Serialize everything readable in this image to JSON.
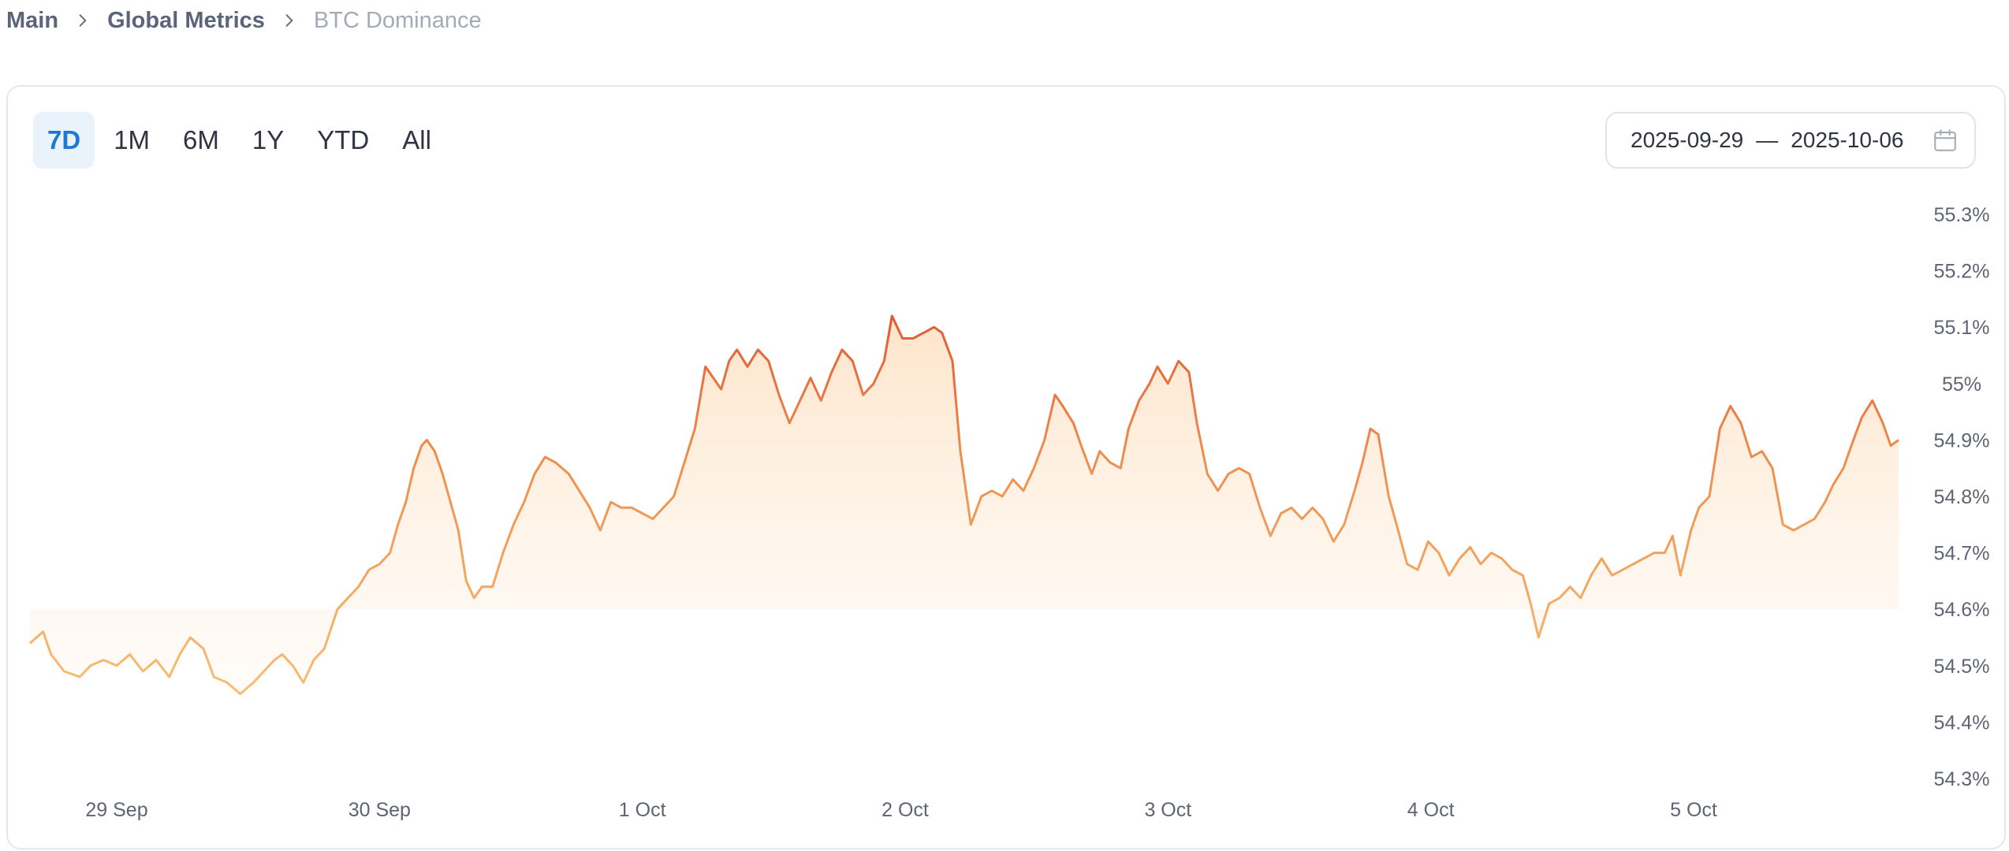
{
  "breadcrumb": {
    "items": [
      "Main",
      "Global Metrics",
      "BTC Dominance"
    ]
  },
  "range_tabs": {
    "items": [
      "7D",
      "1M",
      "6M",
      "1Y",
      "YTD",
      "All"
    ],
    "active": "7D"
  },
  "date_range": {
    "start": "2025-09-29",
    "separator": "—",
    "end": "2025-10-06",
    "icon": "calendar-icon"
  },
  "colors": {
    "active_tab_bg": "#eaf3fc",
    "active_tab_text": "#1a7ad4",
    "line_low": "#f7be73",
    "line_mid": "#ee8d4d",
    "line_high": "#d9452b",
    "area_fill": "#fde8d2"
  },
  "chart_data": {
    "type": "area",
    "title": "",
    "xlabel": "",
    "ylabel": "",
    "x_tick_labels": [
      "29 Sep",
      "30 Sep",
      "1 Oct",
      "2 Oct",
      "3 Oct",
      "4 Oct",
      "5 Oct"
    ],
    "y_tick_labels": [
      "55.3%",
      "55.2%",
      "55.1%",
      "55%",
      "54.9%",
      "54.8%",
      "54.7%",
      "54.6%",
      "54.5%",
      "54.4%",
      "54.3%"
    ],
    "y_ticks": [
      55.3,
      55.2,
      55.1,
      55.0,
      54.9,
      54.8,
      54.7,
      54.6,
      54.5,
      54.4,
      54.3
    ],
    "ylim": [
      54.3,
      55.3
    ],
    "x_range_days": [
      -0.33,
      6.78
    ],
    "grid": false,
    "legend": "none",
    "series": [
      {
        "points": [
          [
            -0.33,
            54.54
          ],
          [
            -0.28,
            54.56
          ],
          [
            -0.25,
            54.52
          ],
          [
            -0.2,
            54.49
          ],
          [
            -0.14,
            54.48
          ],
          [
            -0.1,
            54.5
          ],
          [
            -0.05,
            54.51
          ],
          [
            0,
            54.5
          ],
          [
            0.05,
            54.52
          ],
          [
            0.1,
            54.49
          ],
          [
            0.15,
            54.51
          ],
          [
            0.2,
            54.48
          ],
          [
            0.24,
            54.52
          ],
          [
            0.28,
            54.55
          ],
          [
            0.33,
            54.53
          ],
          [
            0.37,
            54.48
          ],
          [
            0.42,
            54.47
          ],
          [
            0.47,
            54.45
          ],
          [
            0.52,
            54.47
          ],
          [
            0.56,
            54.49
          ],
          [
            0.6,
            54.51
          ],
          [
            0.63,
            54.52
          ],
          [
            0.67,
            54.5
          ],
          [
            0.71,
            54.47
          ],
          [
            0.75,
            54.51
          ],
          [
            0.79,
            54.53
          ],
          [
            0.84,
            54.6
          ],
          [
            0.88,
            54.62
          ],
          [
            0.92,
            54.64
          ],
          [
            0.96,
            54.67
          ],
          [
            1.0,
            54.68
          ],
          [
            1.04,
            54.7
          ],
          [
            1.07,
            54.75
          ],
          [
            1.1,
            54.79
          ],
          [
            1.13,
            54.85
          ],
          [
            1.16,
            54.89
          ],
          [
            1.18,
            54.9
          ],
          [
            1.21,
            54.88
          ],
          [
            1.24,
            54.84
          ],
          [
            1.27,
            54.79
          ],
          [
            1.3,
            54.74
          ],
          [
            1.33,
            54.65
          ],
          [
            1.36,
            54.62
          ],
          [
            1.39,
            54.64
          ],
          [
            1.43,
            54.64
          ],
          [
            1.47,
            54.7
          ],
          [
            1.51,
            54.75
          ],
          [
            1.55,
            54.79
          ],
          [
            1.59,
            54.84
          ],
          [
            1.63,
            54.87
          ],
          [
            1.67,
            54.86
          ],
          [
            1.72,
            54.84
          ],
          [
            1.76,
            54.81
          ],
          [
            1.8,
            54.78
          ],
          [
            1.84,
            54.74
          ],
          [
            1.88,
            54.79
          ],
          [
            1.92,
            54.78
          ],
          [
            1.96,
            54.78
          ],
          [
            2.0,
            54.77
          ],
          [
            2.04,
            54.76
          ],
          [
            2.08,
            54.78
          ],
          [
            2.12,
            54.8
          ],
          [
            2.16,
            54.86
          ],
          [
            2.2,
            54.92
          ],
          [
            2.24,
            55.03
          ],
          [
            2.27,
            55.01
          ],
          [
            2.3,
            54.99
          ],
          [
            2.33,
            55.04
          ],
          [
            2.36,
            55.06
          ],
          [
            2.4,
            55.03
          ],
          [
            2.44,
            55.06
          ],
          [
            2.48,
            55.04
          ],
          [
            2.52,
            54.98
          ],
          [
            2.56,
            54.93
          ],
          [
            2.6,
            54.97
          ],
          [
            2.64,
            55.01
          ],
          [
            2.68,
            54.97
          ],
          [
            2.72,
            55.02
          ],
          [
            2.76,
            55.06
          ],
          [
            2.8,
            55.04
          ],
          [
            2.84,
            54.98
          ],
          [
            2.88,
            55.0
          ],
          [
            2.92,
            55.04
          ],
          [
            2.95,
            55.12
          ],
          [
            2.99,
            55.08
          ],
          [
            3.03,
            55.08
          ],
          [
            3.07,
            55.09
          ],
          [
            3.11,
            55.1
          ],
          [
            3.14,
            55.09
          ],
          [
            3.18,
            55.04
          ],
          [
            3.21,
            54.88
          ],
          [
            3.25,
            54.75
          ],
          [
            3.29,
            54.8
          ],
          [
            3.33,
            54.81
          ],
          [
            3.37,
            54.8
          ],
          [
            3.41,
            54.83
          ],
          [
            3.45,
            54.81
          ],
          [
            3.49,
            54.85
          ],
          [
            3.53,
            54.9
          ],
          [
            3.57,
            54.98
          ],
          [
            3.6,
            54.96
          ],
          [
            3.64,
            54.93
          ],
          [
            3.67,
            54.89
          ],
          [
            3.71,
            54.84
          ],
          [
            3.74,
            54.88
          ],
          [
            3.78,
            54.86
          ],
          [
            3.82,
            54.85
          ],
          [
            3.85,
            54.92
          ],
          [
            3.89,
            54.97
          ],
          [
            3.93,
            55.0
          ],
          [
            3.96,
            55.03
          ],
          [
            4.0,
            55.0
          ],
          [
            4.04,
            55.04
          ],
          [
            4.08,
            55.02
          ],
          [
            4.11,
            54.93
          ],
          [
            4.15,
            54.84
          ],
          [
            4.19,
            54.81
          ],
          [
            4.23,
            54.84
          ],
          [
            4.27,
            54.85
          ],
          [
            4.31,
            54.84
          ],
          [
            4.35,
            54.78
          ],
          [
            4.39,
            54.73
          ],
          [
            4.43,
            54.77
          ],
          [
            4.47,
            54.78
          ],
          [
            4.51,
            54.76
          ],
          [
            4.55,
            54.78
          ],
          [
            4.59,
            54.76
          ],
          [
            4.63,
            54.72
          ],
          [
            4.67,
            54.75
          ],
          [
            4.71,
            54.81
          ],
          [
            4.74,
            54.86
          ],
          [
            4.77,
            54.92
          ],
          [
            4.8,
            54.91
          ],
          [
            4.84,
            54.8
          ],
          [
            4.87,
            54.75
          ],
          [
            4.91,
            54.68
          ],
          [
            4.95,
            54.67
          ],
          [
            4.99,
            54.72
          ],
          [
            5.03,
            54.7
          ],
          [
            5.07,
            54.66
          ],
          [
            5.11,
            54.69
          ],
          [
            5.15,
            54.71
          ],
          [
            5.19,
            54.68
          ],
          [
            5.23,
            54.7
          ],
          [
            5.27,
            54.69
          ],
          [
            5.31,
            54.67
          ],
          [
            5.35,
            54.66
          ],
          [
            5.38,
            54.61
          ],
          [
            5.41,
            54.55
          ],
          [
            5.45,
            54.61
          ],
          [
            5.49,
            54.62
          ],
          [
            5.53,
            54.64
          ],
          [
            5.57,
            54.62
          ],
          [
            5.61,
            54.66
          ],
          [
            5.65,
            54.69
          ],
          [
            5.69,
            54.66
          ],
          [
            5.73,
            54.67
          ],
          [
            5.77,
            54.68
          ],
          [
            5.81,
            54.69
          ],
          [
            5.85,
            54.7
          ],
          [
            5.89,
            54.7
          ],
          [
            5.92,
            54.73
          ],
          [
            5.95,
            54.66
          ],
          [
            5.99,
            54.74
          ],
          [
            6.02,
            54.78
          ],
          [
            6.06,
            54.8
          ],
          [
            6.1,
            54.92
          ],
          [
            6.14,
            54.96
          ],
          [
            6.18,
            54.93
          ],
          [
            6.22,
            54.87
          ],
          [
            6.26,
            54.88
          ],
          [
            6.3,
            54.85
          ],
          [
            6.34,
            54.75
          ],
          [
            6.38,
            54.74
          ],
          [
            6.42,
            54.75
          ],
          [
            6.46,
            54.76
          ],
          [
            6.5,
            54.79
          ],
          [
            6.53,
            54.82
          ],
          [
            6.57,
            54.85
          ],
          [
            6.6,
            54.89
          ],
          [
            6.64,
            54.94
          ],
          [
            6.68,
            54.97
          ],
          [
            6.72,
            54.93
          ],
          [
            6.75,
            54.89
          ],
          [
            6.78,
            54.9
          ]
        ]
      }
    ]
  }
}
